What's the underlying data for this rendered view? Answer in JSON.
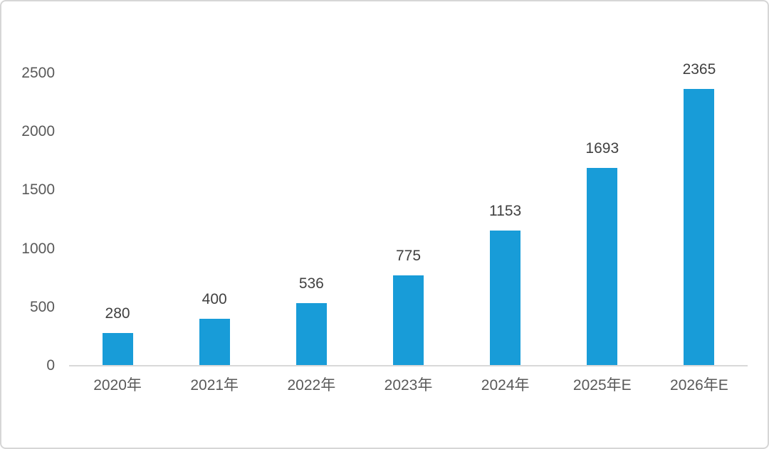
{
  "chart_data": {
    "type": "bar",
    "categories": [
      "2020年",
      "2021年",
      "2022年",
      "2023年",
      "2024年",
      "2025年E",
      "2026年E"
    ],
    "values": [
      280,
      400,
      536,
      775,
      1153,
      1693,
      2365
    ],
    "series_name": "",
    "title": "",
    "xlabel": "",
    "ylabel": "",
    "y_ticks": [
      0,
      500,
      1000,
      1500,
      2000,
      2500
    ],
    "ylim": [
      0,
      2500
    ],
    "grid": false,
    "legend": false,
    "data_labels_shown": true,
    "colors": {
      "bar": "#189cd8",
      "axis_line": "#d9d9d9",
      "axis_label_text": "#595959",
      "data_label_text": "#404040",
      "background": "#ffffff",
      "frame_border": "#d6d6d6"
    }
  }
}
